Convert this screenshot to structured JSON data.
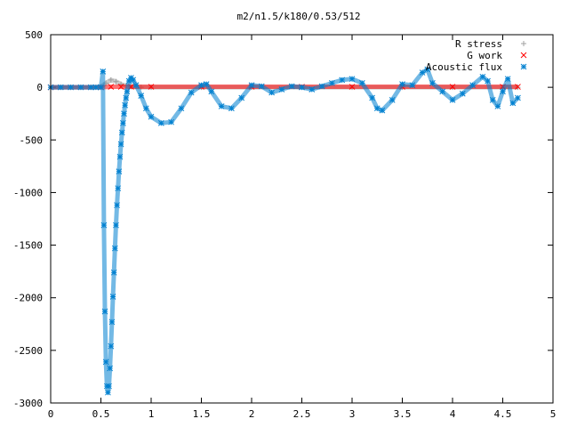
{
  "chart_data": {
    "type": "scatter",
    "title": "m2/n1.5/k180/0.53/512",
    "xlabel": "",
    "ylabel": "",
    "xlim": [
      0,
      5
    ],
    "ylim": [
      -3000,
      500
    ],
    "xticks": [
      "0",
      "0.5",
      "1",
      "1.5",
      "2",
      "2.5",
      "3",
      "3.5",
      "4",
      "4.5",
      "5"
    ],
    "yticks": [
      "500",
      "0",
      "-500",
      "-1000",
      "-1500",
      "-2000",
      "-2500",
      "-3000"
    ],
    "grid": false,
    "legend_position": "top-right",
    "series": [
      {
        "name": "R stress",
        "marker": "plus",
        "color": "#a0a0a0",
        "x": [
          0,
          0.1,
          0.2,
          0.3,
          0.4,
          0.5,
          0.55,
          0.6,
          0.65,
          0.7,
          0.75,
          0.8,
          0.9,
          1.0,
          1.5,
          2.0,
          2.5,
          3.0,
          3.5,
          4.0,
          4.5,
          4.65
        ],
        "y": [
          0,
          0,
          0,
          0,
          0,
          5,
          40,
          70,
          55,
          30,
          15,
          5,
          0,
          0,
          0,
          0,
          0,
          0,
          0,
          0,
          0,
          0
        ]
      },
      {
        "name": "G work",
        "marker": "cross",
        "color": "#ff0000",
        "x": [
          0,
          0.5,
          0.6,
          0.7,
          0.8,
          1.0,
          1.5,
          2.0,
          2.5,
          3.0,
          3.5,
          4.0,
          4.5,
          4.65
        ],
        "y": [
          0,
          0,
          5,
          5,
          5,
          5,
          5,
          5,
          5,
          5,
          5,
          5,
          5,
          5
        ]
      },
      {
        "name": "Acoustic flux",
        "marker": "star",
        "color": "#0080d0",
        "x": [
          0,
          0.1,
          0.2,
          0.3,
          0.4,
          0.45,
          0.5,
          0.52,
          0.53,
          0.54,
          0.55,
          0.56,
          0.57,
          0.58,
          0.59,
          0.6,
          0.61,
          0.62,
          0.63,
          0.64,
          0.65,
          0.66,
          0.67,
          0.68,
          0.69,
          0.7,
          0.71,
          0.72,
          0.73,
          0.74,
          0.75,
          0.76,
          0.78,
          0.8,
          0.82,
          0.85,
          0.9,
          0.95,
          1.0,
          1.1,
          1.2,
          1.3,
          1.4,
          1.5,
          1.55,
          1.6,
          1.7,
          1.8,
          1.9,
          2.0,
          2.1,
          2.2,
          2.3,
          2.4,
          2.5,
          2.6,
          2.7,
          2.8,
          2.9,
          3.0,
          3.1,
          3.2,
          3.25,
          3.3,
          3.4,
          3.5,
          3.6,
          3.7,
          3.75,
          3.8,
          3.9,
          4.0,
          4.1,
          4.2,
          4.3,
          4.35,
          4.4,
          4.45,
          4.5,
          4.55,
          4.6,
          4.65
        ],
        "y": [
          0,
          0,
          0,
          0,
          0,
          0,
          0,
          150,
          -1310,
          -2130,
          -2610,
          -2840,
          -2900,
          -2840,
          -2670,
          -2460,
          -2230,
          -1990,
          -1760,
          -1530,
          -1310,
          -1120,
          -960,
          -800,
          -660,
          -540,
          -430,
          -340,
          -250,
          -170,
          -100,
          -40,
          60,
          90,
          70,
          20,
          -80,
          -200,
          -280,
          -340,
          -330,
          -200,
          -50,
          20,
          30,
          -40,
          -180,
          -200,
          -100,
          20,
          10,
          -50,
          -20,
          10,
          0,
          -20,
          10,
          40,
          70,
          80,
          40,
          -100,
          -200,
          -220,
          -120,
          30,
          20,
          140,
          170,
          40,
          -40,
          -120,
          -60,
          20,
          100,
          60,
          -120,
          -180,
          -40,
          80,
          -150,
          -100
        ]
      }
    ]
  }
}
